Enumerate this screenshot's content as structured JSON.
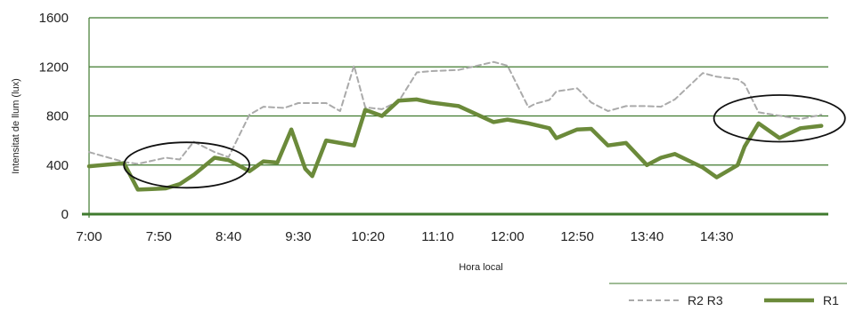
{
  "colors": {
    "grid": "#3f7a2e",
    "r1": "#6b8a3a",
    "r2r3": "#aaaaaa",
    "axis": "#3f7a2e",
    "ellipse": "#111111"
  },
  "chart_data": {
    "type": "line",
    "xlabel": "Hora local",
    "ylabel": "Intensitat de llum (lux)",
    "ylim": [
      0,
      1600
    ],
    "yticks": [
      "0",
      "400",
      "800",
      "1200",
      "1600"
    ],
    "x_tick_labels": [
      "7:00",
      "7:50",
      "8:40",
      "9:30",
      "10:20",
      "11:10",
      "12:00",
      "12:50",
      "13:40",
      "14:30"
    ],
    "x_range_minutes": [
      0,
      530
    ],
    "x_unit": "minutes after 7:00",
    "grid": true,
    "legend_position": "bottom-right",
    "series": [
      {
        "name": "R2 R3",
        "style": "dashed",
        "x": [
          0,
          25,
          35,
          55,
          65,
          75,
          90,
          100,
          115,
          125,
          140,
          150,
          160,
          170,
          180,
          190,
          198,
          210,
          222,
          235,
          245,
          265,
          290,
          300,
          315,
          320,
          330,
          335,
          350,
          360,
          372,
          385,
          400,
          410,
          420,
          440,
          450,
          465,
          470,
          480,
          510,
          525
        ],
        "y": [
          505,
          425,
          410,
          460,
          445,
          590,
          505,
          465,
          810,
          875,
          865,
          905,
          905,
          905,
          840,
          1210,
          870,
          855,
          920,
          1155,
          1165,
          1175,
          1240,
          1210,
          870,
          900,
          930,
          1000,
          1025,
          910,
          840,
          880,
          880,
          875,
          935,
          1150,
          1120,
          1100,
          1060,
          830,
          775,
          810
        ]
      },
      {
        "name": "R1",
        "style": "solid",
        "x": [
          0,
          25,
          35,
          45,
          55,
          65,
          75,
          90,
          100,
          115,
          125,
          135,
          145,
          155,
          160,
          170,
          180,
          190,
          198,
          210,
          222,
          235,
          245,
          265,
          290,
          300,
          315,
          330,
          335,
          350,
          360,
          372,
          385,
          400,
          410,
          420,
          440,
          450,
          465,
          470,
          480,
          495,
          510,
          525
        ],
        "y": [
          390,
          415,
          200,
          205,
          210,
          245,
          320,
          460,
          440,
          350,
          430,
          420,
          690,
          370,
          310,
          600,
          580,
          560,
          850,
          800,
          925,
          935,
          910,
          880,
          750,
          770,
          740,
          700,
          620,
          690,
          695,
          560,
          580,
          400,
          460,
          490,
          380,
          300,
          400,
          550,
          740,
          620,
          700,
          720
        ]
      }
    ],
    "annotations": [
      {
        "shape": "ellipse",
        "cx": 70,
        "cy": 400,
        "rx": 45,
        "ry": 185
      },
      {
        "shape": "ellipse",
        "cx": 495,
        "cy": 780,
        "rx": 47,
        "ry": 190
      }
    ]
  }
}
